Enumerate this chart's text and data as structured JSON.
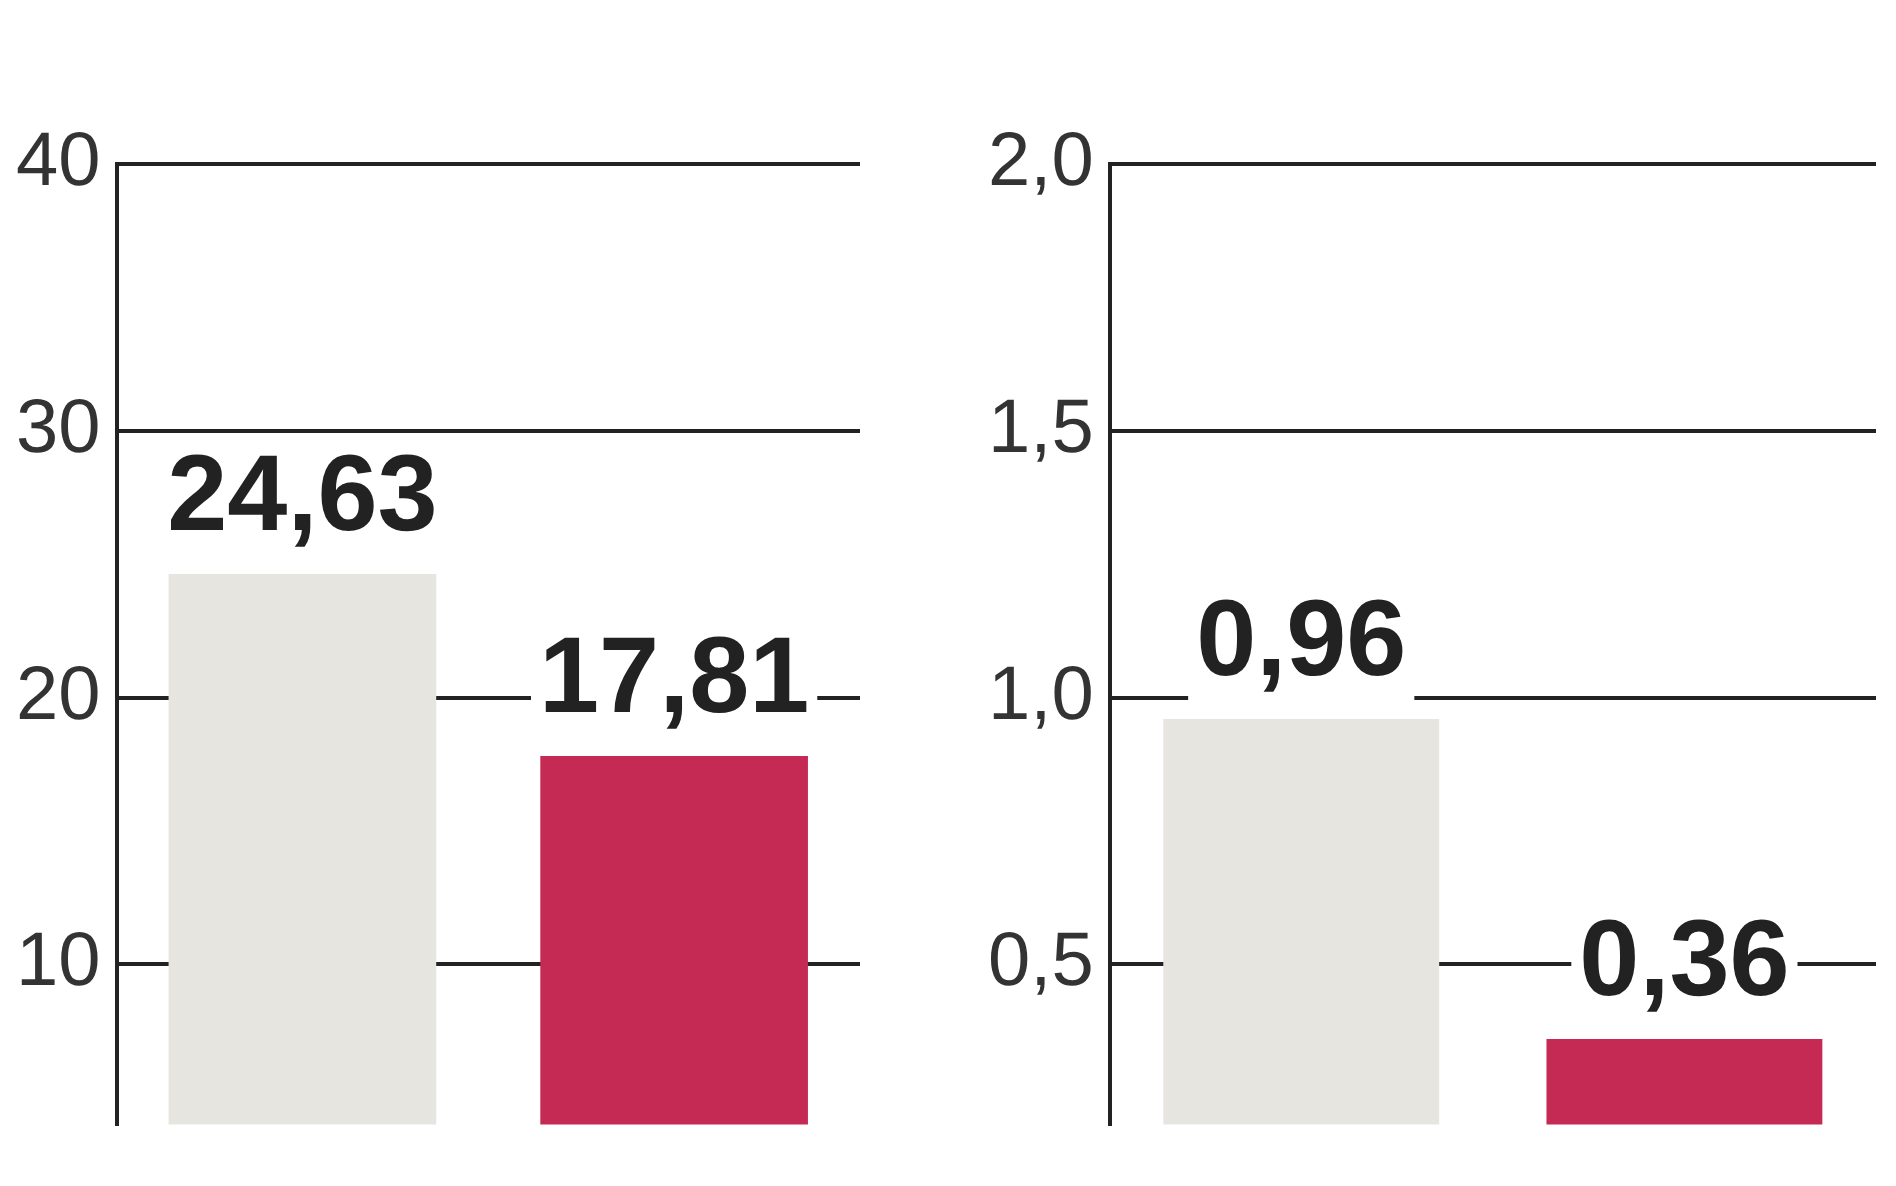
{
  "chart_data": [
    {
      "type": "bar",
      "categories": [
        null,
        null
      ],
      "values": [
        24.63,
        17.81
      ],
      "colors": [
        "#e6e5df",
        "#c52a55"
      ],
      "value_labels": [
        "24,63",
        "17,81"
      ],
      "ylim": [
        4,
        40
      ],
      "yticks": [
        10,
        20,
        30,
        40
      ],
      "grid": "y"
    },
    {
      "type": "bar",
      "categories": [
        null,
        null
      ],
      "values": [
        0.96,
        0.36
      ],
      "colors": [
        "#e6e5df",
        "#c52a55"
      ],
      "value_labels": [
        "0,96",
        "0,36"
      ],
      "ylim": [
        0.2,
        2
      ],
      "yticks": [
        {
          "value": 0.5,
          "label": "0,5"
        },
        {
          "value": 1,
          "label": "1,0"
        },
        {
          "value": 1.5,
          "label": "1,5"
        },
        {
          "value": 2,
          "label": "2,0"
        }
      ],
      "grid": "y"
    }
  ]
}
